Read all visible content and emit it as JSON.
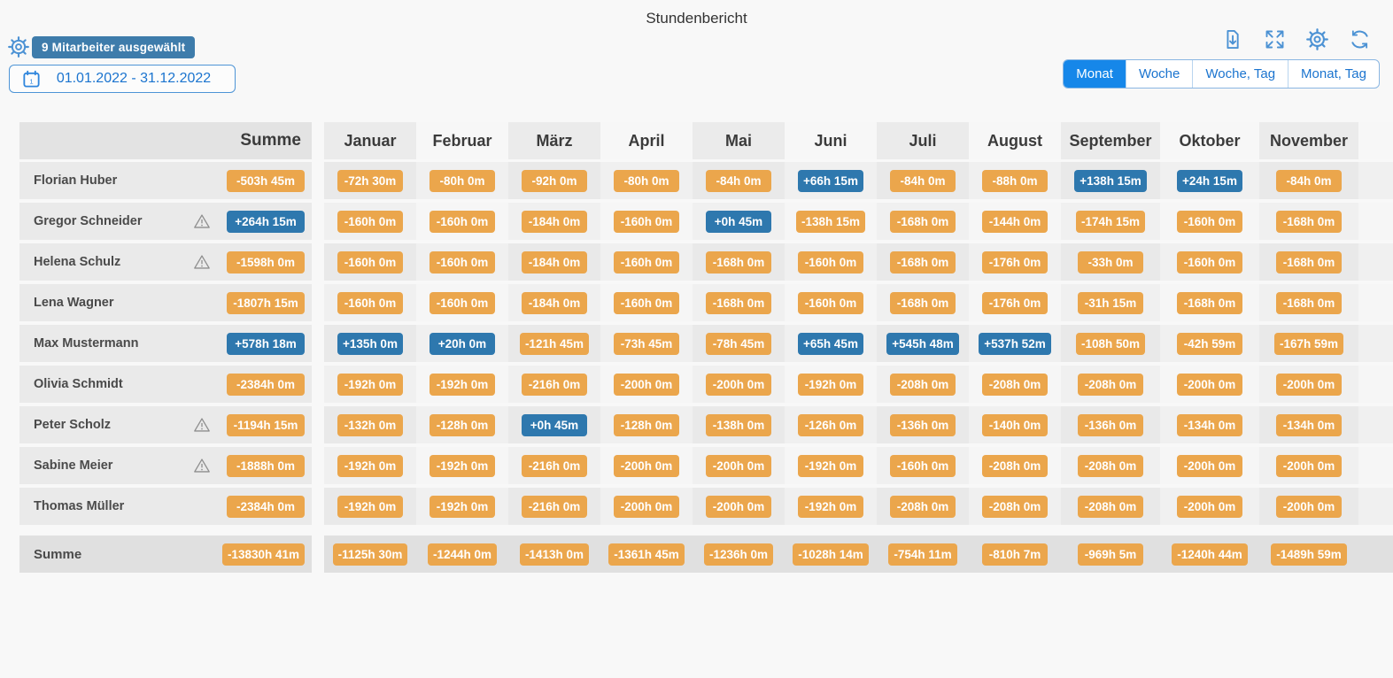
{
  "title": "Stundenbericht",
  "toolbar": {
    "employees_selected": "9 Mitarbeiter ausgewählt",
    "date_range": "01.01.2022 - 31.12.2022",
    "icons": [
      "settings-icon",
      "export-icon",
      "fullscreen-icon",
      "gear-icon",
      "refresh-icon"
    ],
    "view_tabs": [
      {
        "label": "Monat",
        "active": true
      },
      {
        "label": "Woche",
        "active": false
      },
      {
        "label": "Woche, Tag",
        "active": false
      },
      {
        "label": "Monat, Tag",
        "active": false
      }
    ]
  },
  "colors": {
    "negative_badge": "#EBA64C",
    "positive_badge": "#2E78AE",
    "accent": "#1B74CF",
    "active_tab": "#1687E9",
    "selected_badge": "#3E7CAB"
  },
  "table": {
    "summe_header": "Summe",
    "months": [
      "Januar",
      "Februar",
      "März",
      "April",
      "Mai",
      "Juni",
      "Juli",
      "August",
      "September",
      "Oktober",
      "November"
    ],
    "rows": [
      {
        "name": "Florian Huber",
        "warning": false,
        "total": "-503h 45m",
        "values": [
          "-72h 30m",
          "-80h 0m",
          "-92h 0m",
          "-80h 0m",
          "-84h 0m",
          "+66h 15m",
          "-84h 0m",
          "-88h 0m",
          "+138h 15m",
          "+24h 15m",
          "-84h 0m"
        ]
      },
      {
        "name": "Gregor Schneider",
        "warning": true,
        "total": "+264h 15m",
        "values": [
          "-160h 0m",
          "-160h 0m",
          "-184h 0m",
          "-160h 0m",
          "+0h 45m",
          "-138h 15m",
          "-168h 0m",
          "-144h 0m",
          "-174h 15m",
          "-160h 0m",
          "-168h 0m"
        ]
      },
      {
        "name": "Helena Schulz",
        "warning": true,
        "total": "-1598h 0m",
        "values": [
          "-160h 0m",
          "-160h 0m",
          "-184h 0m",
          "-160h 0m",
          "-168h 0m",
          "-160h 0m",
          "-168h 0m",
          "-176h 0m",
          "-33h 0m",
          "-160h 0m",
          "-168h 0m"
        ]
      },
      {
        "name": "Lena Wagner",
        "warning": false,
        "total": "-1807h 15m",
        "values": [
          "-160h 0m",
          "-160h 0m",
          "-184h 0m",
          "-160h 0m",
          "-168h 0m",
          "-160h 0m",
          "-168h 0m",
          "-176h 0m",
          "-31h 15m",
          "-168h 0m",
          "-168h 0m"
        ]
      },
      {
        "name": "Max Mustermann",
        "warning": false,
        "total": "+578h 18m",
        "values": [
          "+135h 0m",
          "+20h 0m",
          "-121h 45m",
          "-73h 45m",
          "-78h 45m",
          "+65h 45m",
          "+545h 48m",
          "+537h 52m",
          "-108h 50m",
          "-42h 59m",
          "-167h 59m"
        ]
      },
      {
        "name": "Olivia Schmidt",
        "warning": false,
        "total": "-2384h 0m",
        "values": [
          "-192h 0m",
          "-192h 0m",
          "-216h 0m",
          "-200h 0m",
          "-200h 0m",
          "-192h 0m",
          "-208h 0m",
          "-208h 0m",
          "-208h 0m",
          "-200h 0m",
          "-200h 0m"
        ]
      },
      {
        "name": "Peter Scholz",
        "warning": true,
        "total": "-1194h 15m",
        "values": [
          "-132h 0m",
          "-128h 0m",
          "+0h 45m",
          "-128h 0m",
          "-138h 0m",
          "-126h 0m",
          "-136h 0m",
          "-140h 0m",
          "-136h 0m",
          "-134h 0m",
          "-134h 0m"
        ]
      },
      {
        "name": "Sabine Meier",
        "warning": true,
        "total": "-1888h 0m",
        "values": [
          "-192h 0m",
          "-192h 0m",
          "-216h 0m",
          "-200h 0m",
          "-200h 0m",
          "-192h 0m",
          "-160h 0m",
          "-208h 0m",
          "-208h 0m",
          "-200h 0m",
          "-200h 0m"
        ]
      },
      {
        "name": "Thomas Müller",
        "warning": false,
        "total": "-2384h 0m",
        "values": [
          "-192h 0m",
          "-192h 0m",
          "-216h 0m",
          "-200h 0m",
          "-200h 0m",
          "-192h 0m",
          "-208h 0m",
          "-208h 0m",
          "-208h 0m",
          "-200h 0m",
          "-200h 0m"
        ]
      }
    ],
    "total_row": {
      "name": "Summe",
      "total": "-13830h 41m",
      "values": [
        "-1125h 30m",
        "-1244h 0m",
        "-1413h 0m",
        "-1361h 45m",
        "-1236h 0m",
        "-1028h 14m",
        "-754h 11m",
        "-810h 7m",
        "-969h 5m",
        "-1240h 44m",
        "-1489h 59m"
      ]
    }
  }
}
